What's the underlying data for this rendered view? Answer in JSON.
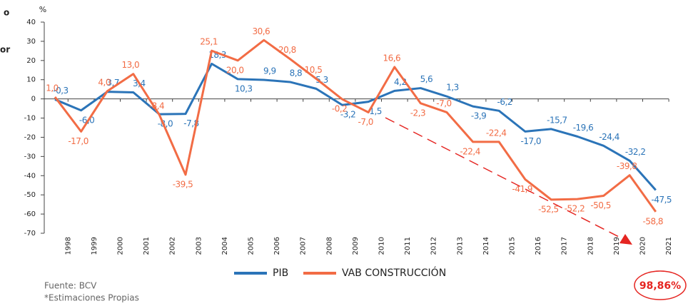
{
  "chart_data": {
    "type": "line",
    "y_label": "%",
    "left_fragments": [
      "o",
      "or"
    ],
    "categories": [
      "1998",
      "1999",
      "2000",
      "2001",
      "2002",
      "2003",
      "2004",
      "2005",
      "2006",
      "2007",
      "2008",
      "2009",
      "2010",
      "2011",
      "2012",
      "2013",
      "2014",
      "2015",
      "2016",
      "2017",
      "2018",
      "2019",
      "2020",
      "2021"
    ],
    "series": [
      {
        "name": "PIB",
        "color": "#2b74b8",
        "values": [
          -0.3,
          -6.0,
          3.7,
          3.4,
          -8.0,
          -7.8,
          18.3,
          10.3,
          9.9,
          8.8,
          5.3,
          -3.2,
          -1.5,
          4.2,
          5.6,
          1.3,
          -3.9,
          -6.2,
          -17.0,
          -15.7,
          -19.6,
          -24.4,
          -32.2,
          -47.5
        ],
        "value_labels": [
          "-0,3",
          "-6,0",
          "3,7",
          "3,4",
          "-8,0",
          "-7,8",
          "18,3",
          "10,3",
          "9,9",
          "8,8",
          "5,3",
          "-3,2",
          "-1,5",
          "4,2",
          "5,6",
          "1,3",
          "-3,9",
          "-6,2",
          "-17,0",
          "-15,7",
          "-19,6",
          "-24,4",
          "-32,2",
          "-47,5"
        ]
      },
      {
        "name": "VAB CONSTRUCCIÓN",
        "color": "#f26c45",
        "values": [
          1.0,
          -17.0,
          4.0,
          13.0,
          -8.4,
          -39.5,
          25.1,
          20.0,
          30.6,
          20.8,
          10.5,
          -0.2,
          -7.0,
          16.6,
          -2.3,
          -7.0,
          -22.4,
          -22.4,
          -41.9,
          -52.5,
          -52.2,
          -50.5,
          -39.8,
          -58.8
        ],
        "value_labels": [
          "1,0",
          "-17,0",
          "4,0",
          "13,0",
          "-8,4",
          "-39,5",
          "25,1",
          "20,0",
          "30,6",
          "20,8",
          "10,5",
          "-0,2",
          "-7,0",
          "16,6",
          "-2,3",
          "-7,0",
          "-22,4",
          "-22,4",
          "-41,9",
          "-52,5",
          "-52,2",
          "-50,5",
          "-39,8",
          "-58,8"
        ]
      }
    ],
    "ylim": [
      -70,
      40
    ],
    "yticks": [
      -70,
      -60,
      -50,
      -40,
      -30,
      -20,
      -10,
      0,
      10,
      20,
      30,
      40
    ],
    "annotation": "98,86%",
    "annotation_color": "#e52521",
    "source": "Fuente: BCV",
    "note": "*Estimaciones Propias"
  }
}
